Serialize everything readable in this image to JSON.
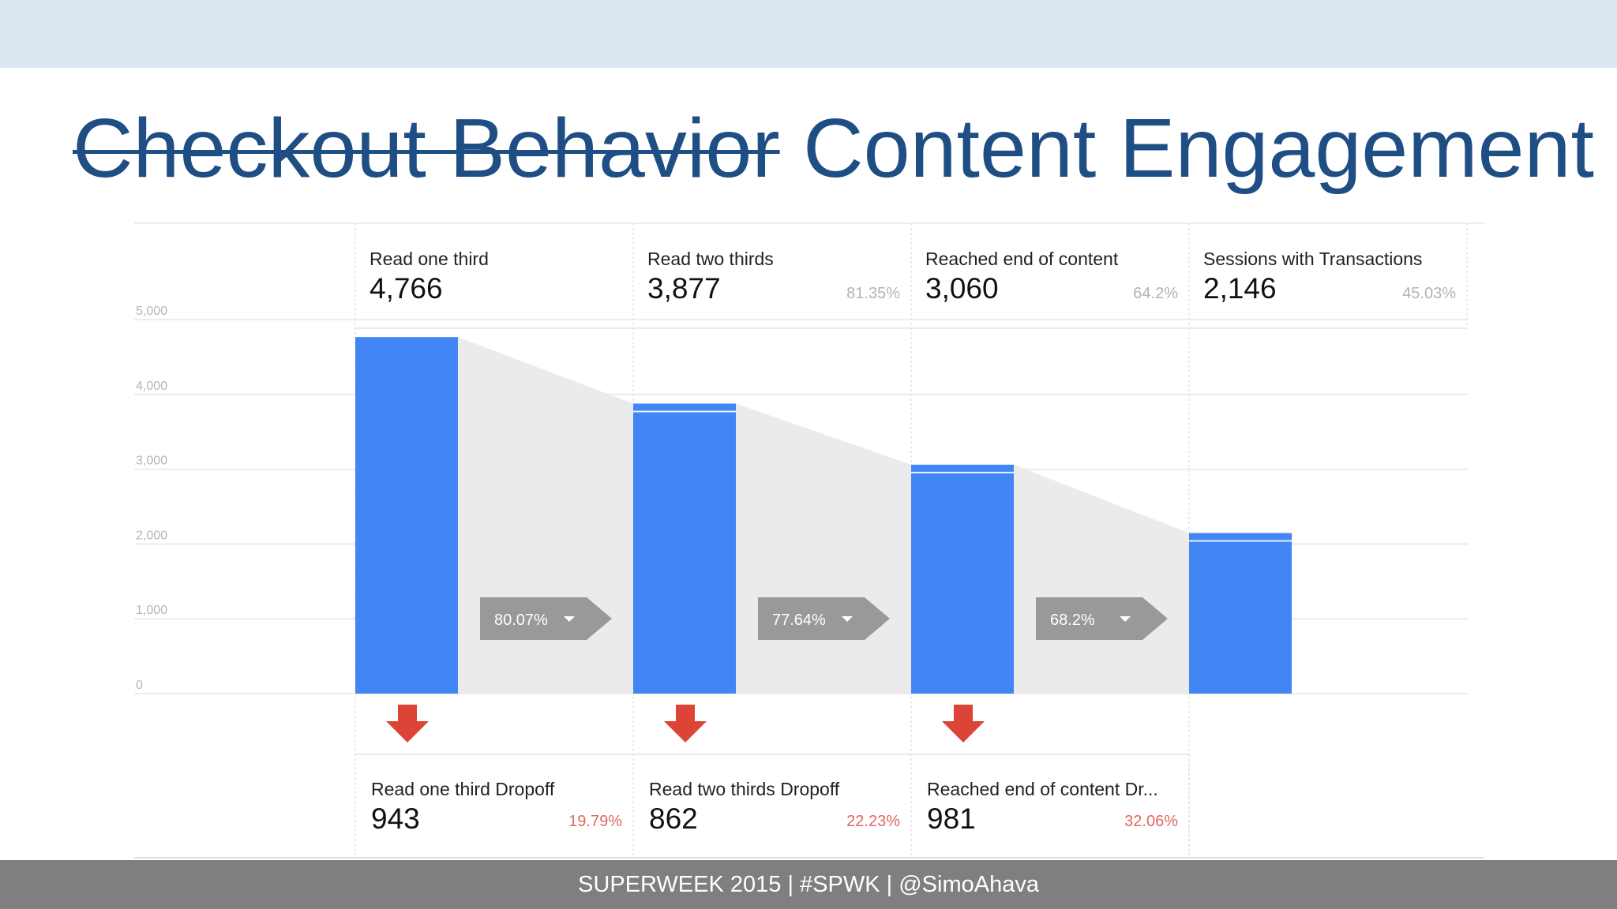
{
  "slide": {
    "title_struck": "Checkout Behavior",
    "title_new": "Content Engagement",
    "footer": "SUPERWEEK 2015 | #SPWK | @SimoAhava"
  },
  "chart_data": {
    "type": "bar",
    "ylim": [
      0,
      5000
    ],
    "yticks": [
      0,
      1000,
      2000,
      3000,
      4000,
      5000
    ],
    "ytick_labels": [
      "0",
      "1,000",
      "2,000",
      "3,000",
      "4,000",
      "5,000"
    ],
    "grid": true,
    "categories": [
      "Read one third",
      "Read two thirds",
      "Reached end of content",
      "Sessions with Transactions"
    ],
    "values": [
      4766,
      3877,
      3060,
      2146
    ],
    "value_labels": [
      "4,766",
      "3,877",
      "3,060",
      "2,146"
    ],
    "step_percentages": [
      "",
      "81.35%",
      "64.2%",
      "45.03%"
    ],
    "conversion_rates": [
      "80.07%",
      "77.64%",
      "68.2%"
    ],
    "dropoffs": [
      {
        "label": "Read one third Dropoff",
        "value": 943,
        "value_label": "943",
        "percent": "19.79%"
      },
      {
        "label": "Read two thirds Dropoff",
        "value": 862,
        "value_label": "862",
        "percent": "22.23%"
      },
      {
        "label": "Reached end of content Dr...",
        "value": 981,
        "value_label": "981",
        "percent": "32.06%"
      }
    ],
    "colors": {
      "bar": "#4285f4",
      "funnel": "#ebebeb",
      "tag": "#999999",
      "arrow": "#db4437"
    }
  }
}
